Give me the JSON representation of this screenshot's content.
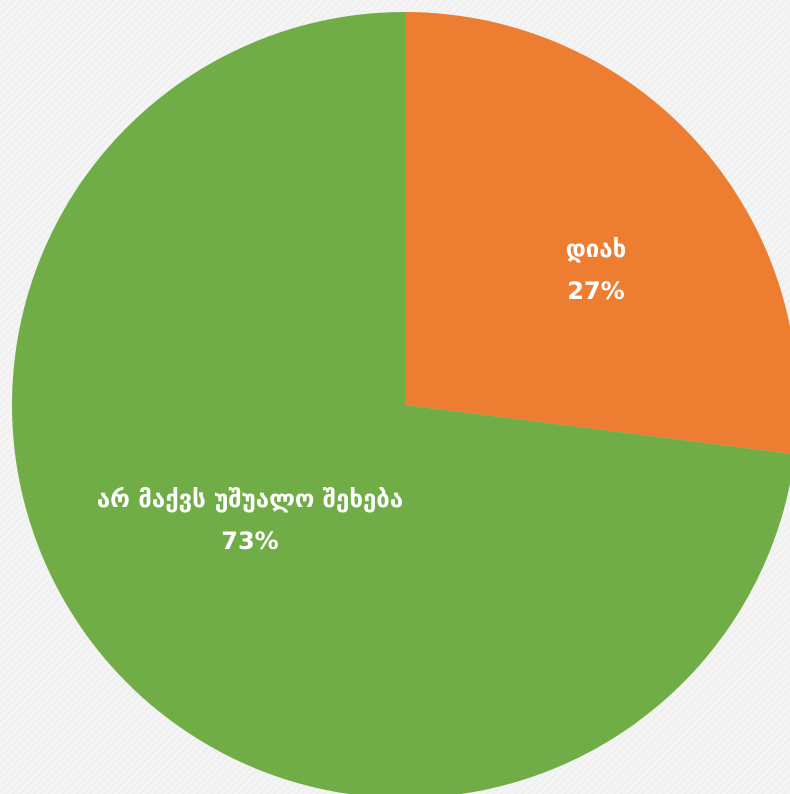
{
  "chart_data": {
    "type": "pie",
    "start_angle_deg": 0,
    "direction": "clockwise",
    "slices": [
      {
        "label": "დიახ",
        "value": 27,
        "value_label": "27%",
        "color": "#ED7D31"
      },
      {
        "label": "არ მაქვს უშუალო შეხება",
        "value": 73,
        "value_label": "73%",
        "color": "#70AD47"
      }
    ],
    "legend": "none",
    "data_labels": "inside"
  }
}
